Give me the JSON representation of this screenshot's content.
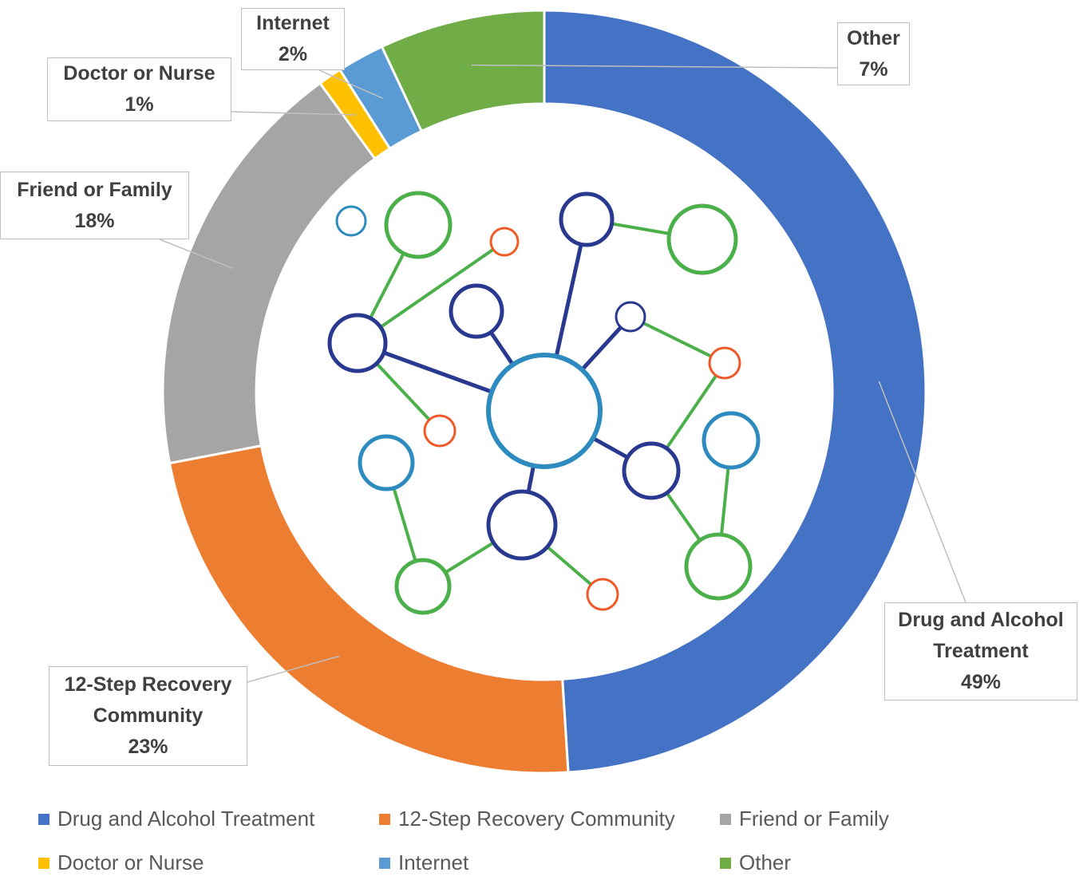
{
  "chart_data": {
    "type": "donut",
    "categories": [
      "Drug and Alcohol Treatment",
      "12-Step Recovery Community",
      "Friend or Family",
      "Doctor or Nurse",
      "Internet",
      "Other"
    ],
    "values": [
      49,
      23,
      18,
      1,
      2,
      7
    ],
    "value_labels": [
      "49%",
      "23%",
      "18%",
      "1%",
      "2%",
      "7%"
    ],
    "colors": [
      "#4472c4",
      "#ed7d31",
      "#a5a5a5",
      "#ffc000",
      "#5b9bd5",
      "#70ad47"
    ],
    "legend": "bottom"
  }
}
